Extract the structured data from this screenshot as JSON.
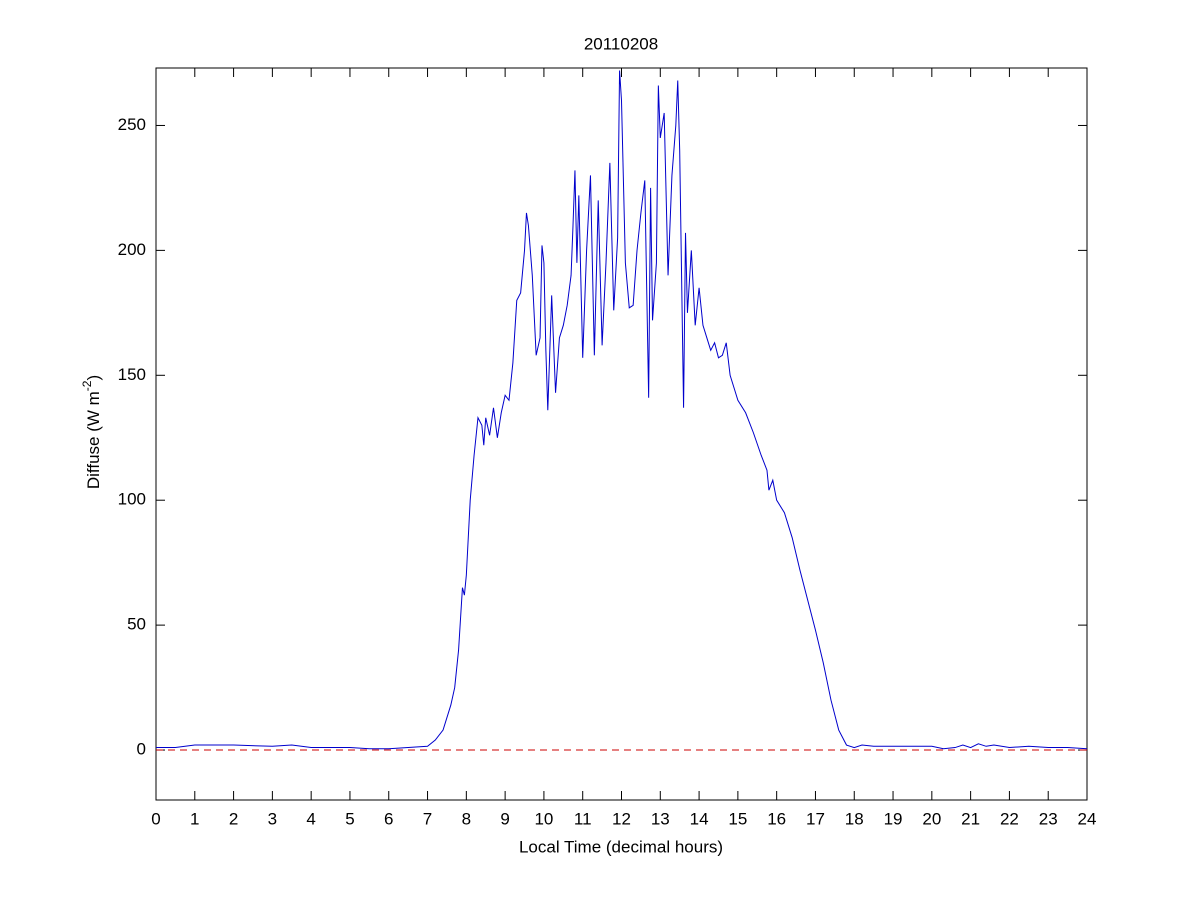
{
  "chart_data": {
    "type": "line",
    "title": "20110208",
    "xlabel": "Local Time (decimal hours)",
    "ylabel": [
      "Diffuse (W m",
      "-2",
      ")"
    ],
    "xlim": [
      0,
      24
    ],
    "ylim": [
      -20,
      273
    ],
    "xticks": [
      0,
      1,
      2,
      3,
      4,
      5,
      6,
      7,
      8,
      9,
      10,
      11,
      12,
      13,
      14,
      15,
      16,
      17,
      18,
      19,
      20,
      21,
      22,
      23,
      24
    ],
    "yticks": [
      0,
      50,
      100,
      150,
      200,
      250
    ],
    "reference_line": {
      "value": 0,
      "color": "#cc0000",
      "style": "dashed"
    },
    "x": [
      0,
      0.5,
      1,
      2,
      3,
      3.5,
      4,
      5,
      5.5,
      6,
      6.5,
      7,
      7.2,
      7.4,
      7.6,
      7.7,
      7.8,
      7.9,
      7.95,
      8.0,
      8.1,
      8.2,
      8.3,
      8.4,
      8.45,
      8.5,
      8.6,
      8.7,
      8.8,
      8.9,
      9.0,
      9.1,
      9.2,
      9.3,
      9.4,
      9.5,
      9.55,
      9.6,
      9.7,
      9.8,
      9.9,
      9.95,
      10.0,
      10.05,
      10.1,
      10.2,
      10.3,
      10.4,
      10.5,
      10.6,
      10.7,
      10.75,
      10.8,
      10.85,
      10.9,
      11.0,
      11.1,
      11.2,
      11.3,
      11.4,
      11.5,
      11.6,
      11.7,
      11.8,
      11.9,
      11.95,
      12.0,
      12.1,
      12.2,
      12.3,
      12.4,
      12.5,
      12.6,
      12.7,
      12.75,
      12.8,
      12.9,
      12.95,
      13.0,
      13.1,
      13.2,
      13.3,
      13.4,
      13.45,
      13.5,
      13.6,
      13.65,
      13.7,
      13.8,
      13.9,
      14.0,
      14.1,
      14.2,
      14.3,
      14.4,
      14.5,
      14.6,
      14.7,
      14.8,
      14.9,
      15.0,
      15.2,
      15.4,
      15.6,
      15.75,
      15.8,
      15.9,
      16.0,
      16.2,
      16.4,
      16.6,
      16.8,
      17.0,
      17.2,
      17.4,
      17.6,
      17.8,
      18.0,
      18.2,
      18.5,
      19,
      19.5,
      20,
      20.3,
      20.6,
      20.8,
      21,
      21.2,
      21.4,
      21.6,
      22,
      22.5,
      23,
      23.5,
      24
    ],
    "series": [
      {
        "name": "Diffuse",
        "color": "#0000cc",
        "values": [
          1,
          1,
          2,
          2,
          1.5,
          2,
          1,
          1,
          0.5,
          0.5,
          1,
          1.5,
          4,
          8,
          18,
          25,
          40,
          65,
          62,
          70,
          100,
          118,
          133,
          130,
          122,
          133,
          126,
          137,
          125,
          135,
          142,
          140,
          155,
          180,
          183,
          200,
          215,
          210,
          190,
          158,
          165,
          202,
          195,
          160,
          136,
          182,
          143,
          165,
          170,
          178,
          190,
          210,
          232,
          195,
          222,
          157,
          200,
          230,
          158,
          220,
          162,
          195,
          235,
          176,
          205,
          272,
          260,
          195,
          177,
          178,
          200,
          215,
          228,
          141,
          225,
          172,
          195,
          266,
          245,
          255,
          190,
          230,
          250,
          268,
          240,
          137,
          207,
          175,
          200,
          170,
          185,
          170,
          165,
          160,
          163,
          157,
          158,
          163,
          150,
          145,
          140,
          135,
          127,
          118,
          112,
          104,
          108,
          100,
          95,
          85,
          72,
          60,
          48,
          35,
          20,
          8,
          2,
          1,
          2,
          1.5,
          1.5,
          1.5,
          1.5,
          0.5,
          1,
          2,
          1,
          2.5,
          1.5,
          2,
          1,
          1.5,
          1,
          1,
          0.5
        ]
      }
    ]
  }
}
